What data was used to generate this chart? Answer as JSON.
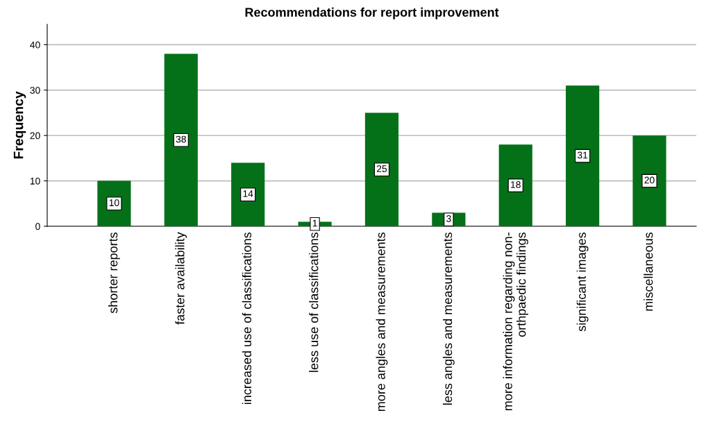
{
  "chart_data": {
    "type": "bar",
    "title": "Recommendations for report improvement",
    "ylabel": "Frequency",
    "categories": [
      "shorter reports",
      "faster availability",
      "increased use of classifications",
      "less use of classifications",
      "more angles and measurements",
      "less angles and measurements",
      "more information regarding non-\northpaedic findings",
      "significant images",
      "miscellaneous"
    ],
    "values": [
      10,
      38,
      14,
      1,
      25,
      3,
      18,
      31,
      20
    ],
    "color": "#047119",
    "ylim": [
      0,
      44.5
    ],
    "yticks": [
      0,
      10,
      20,
      30,
      40
    ],
    "grid": "y",
    "data_labels": true
  }
}
